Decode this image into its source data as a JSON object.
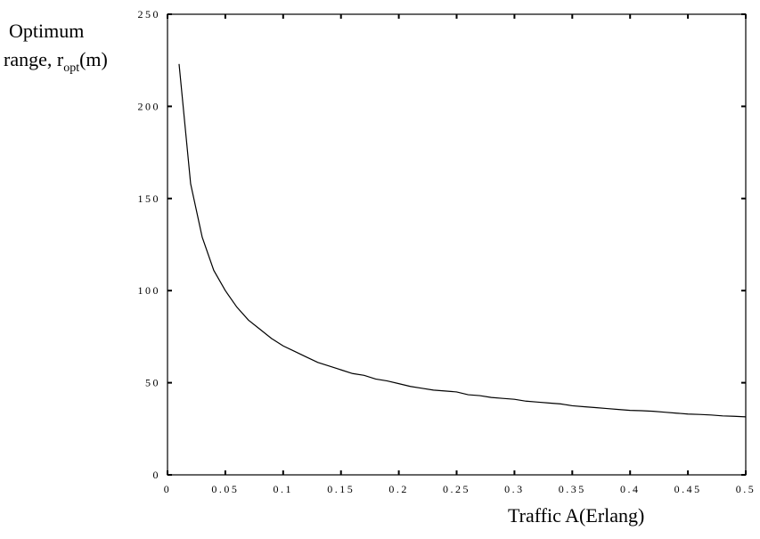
{
  "chart_data": {
    "type": "line",
    "title": "",
    "ylabel_main": "Optimum",
    "ylabel_prefix": "range, r",
    "ylabel_sub": "opt",
    "ylabel_unit": "(m)",
    "xlabel": "Traffic A(Erlang)",
    "xlim": [
      0,
      0.5
    ],
    "ylim": [
      0,
      250
    ],
    "xticks": [
      "0",
      "0.05",
      "0.1",
      "0.15",
      "0.2",
      "0.25",
      "0.3",
      "0.35",
      "0.4",
      "0.45",
      "0.5"
    ],
    "yticks": [
      "0",
      "50",
      "100",
      "150",
      "200",
      "250"
    ],
    "grid": false,
    "series": [
      {
        "x": [
          0.01,
          0.02,
          0.03,
          0.04,
          0.05,
          0.06,
          0.07,
          0.08,
          0.09,
          0.1,
          0.11,
          0.12,
          0.13,
          0.14,
          0.15,
          0.16,
          0.17,
          0.18,
          0.19,
          0.2,
          0.21,
          0.22,
          0.23,
          0.24,
          0.25,
          0.26,
          0.27,
          0.28,
          0.29,
          0.3,
          0.31,
          0.32,
          0.33,
          0.34,
          0.35,
          0.36,
          0.37,
          0.38,
          0.39,
          0.4,
          0.41,
          0.42,
          0.43,
          0.44,
          0.45,
          0.46,
          0.47,
          0.48,
          0.49,
          0.5
        ],
        "y": [
          223,
          158,
          129,
          111,
          100,
          91,
          84,
          79,
          74,
          70,
          67,
          64,
          61,
          59,
          57,
          55,
          54,
          52,
          51,
          49.5,
          48,
          47,
          46,
          45.5,
          45,
          43.5,
          43,
          42,
          41.5,
          41,
          40,
          39.5,
          39,
          38.5,
          37.5,
          37,
          36.5,
          36,
          35.5,
          35,
          34.8,
          34.5,
          34,
          33.5,
          33,
          32.8,
          32.5,
          32,
          31.8,
          31.5
        ]
      }
    ]
  }
}
